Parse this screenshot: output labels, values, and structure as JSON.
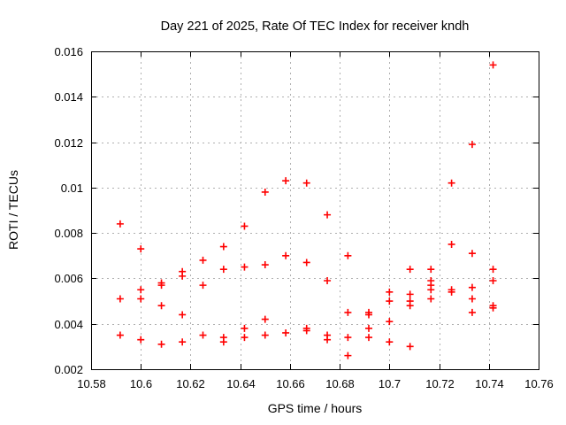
{
  "chart_data": {
    "type": "scatter",
    "title": "Day 221 of 2025, Rate Of TEC Index for receiver kndh",
    "xlabel": "GPS time / hours",
    "ylabel": "ROTI / TECUs",
    "xlim": [
      10.58,
      10.76
    ],
    "ylim": [
      0.002,
      0.016
    ],
    "x_ticks": [
      10.58,
      10.6,
      10.62,
      10.64,
      10.66,
      10.68,
      10.7,
      10.72,
      10.74,
      10.76
    ],
    "x_tick_labels": [
      "10.58",
      "10.6",
      "10.62",
      "10.64",
      "10.66",
      "10.68",
      "10.7",
      "10.72",
      "10.74",
      "10.76"
    ],
    "y_ticks": [
      0.002,
      0.004,
      0.006,
      0.008,
      0.01,
      0.012,
      0.014,
      0.016
    ],
    "y_tick_labels": [
      "0.002",
      "0.004",
      "0.006",
      "0.008",
      "0.01",
      "0.012",
      "0.014",
      "0.016"
    ],
    "grid": true,
    "legend": "none",
    "marker": "plus",
    "series": [
      {
        "name": "roti",
        "points": [
          [
            10.5917,
            0.0084
          ],
          [
            10.5917,
            0.0051
          ],
          [
            10.5917,
            0.0035
          ],
          [
            10.6,
            0.0073
          ],
          [
            10.6,
            0.0055
          ],
          [
            10.6,
            0.0051
          ],
          [
            10.6,
            0.0033
          ],
          [
            10.6083,
            0.0058
          ],
          [
            10.6083,
            0.0057
          ],
          [
            10.6083,
            0.0048
          ],
          [
            10.6083,
            0.0031
          ],
          [
            10.6167,
            0.0063
          ],
          [
            10.6167,
            0.0061
          ],
          [
            10.6167,
            0.0044
          ],
          [
            10.6167,
            0.0032
          ],
          [
            10.625,
            0.0068
          ],
          [
            10.625,
            0.0057
          ],
          [
            10.625,
            0.0035
          ],
          [
            10.6333,
            0.0074
          ],
          [
            10.6333,
            0.0064
          ],
          [
            10.6333,
            0.0034
          ],
          [
            10.6333,
            0.0032
          ],
          [
            10.6417,
            0.0083
          ],
          [
            10.6417,
            0.0065
          ],
          [
            10.6417,
            0.0038
          ],
          [
            10.6417,
            0.0034
          ],
          [
            10.65,
            0.0098
          ],
          [
            10.65,
            0.0066
          ],
          [
            10.65,
            0.0042
          ],
          [
            10.65,
            0.0035
          ],
          [
            10.6583,
            0.0103
          ],
          [
            10.6583,
            0.007
          ],
          [
            10.6583,
            0.0036
          ],
          [
            10.6667,
            0.0102
          ],
          [
            10.6667,
            0.0067
          ],
          [
            10.6667,
            0.0038
          ],
          [
            10.6667,
            0.0037
          ],
          [
            10.675,
            0.0088
          ],
          [
            10.675,
            0.0059
          ],
          [
            10.675,
            0.0035
          ],
          [
            10.675,
            0.0033
          ],
          [
            10.6833,
            0.007
          ],
          [
            10.6833,
            0.0045
          ],
          [
            10.6833,
            0.0034
          ],
          [
            10.6833,
            0.0026
          ],
          [
            10.6917,
            0.0045
          ],
          [
            10.6917,
            0.0044
          ],
          [
            10.6917,
            0.0038
          ],
          [
            10.6917,
            0.0034
          ],
          [
            10.7,
            0.0054
          ],
          [
            10.7,
            0.005
          ],
          [
            10.7,
            0.0041
          ],
          [
            10.7,
            0.0032
          ],
          [
            10.7083,
            0.0064
          ],
          [
            10.7083,
            0.0053
          ],
          [
            10.7083,
            0.005
          ],
          [
            10.7083,
            0.0048
          ],
          [
            10.7083,
            0.003
          ],
          [
            10.7167,
            0.0064
          ],
          [
            10.7167,
            0.0059
          ],
          [
            10.7167,
            0.0057
          ],
          [
            10.7167,
            0.0055
          ],
          [
            10.7167,
            0.0051
          ],
          [
            10.725,
            0.0102
          ],
          [
            10.725,
            0.0075
          ],
          [
            10.725,
            0.0055
          ],
          [
            10.725,
            0.0054
          ],
          [
            10.7333,
            0.0119
          ],
          [
            10.7333,
            0.0071
          ],
          [
            10.7333,
            0.0056
          ],
          [
            10.7333,
            0.0051
          ],
          [
            10.7333,
            0.0045
          ],
          [
            10.7417,
            0.0154
          ],
          [
            10.7417,
            0.0064
          ],
          [
            10.7417,
            0.0059
          ],
          [
            10.7417,
            0.0048
          ],
          [
            10.7417,
            0.0047
          ]
        ]
      }
    ],
    "colors": {
      "marker": "#ff0000",
      "grid": "#b0b0b0",
      "frame": "#000000",
      "text": "#000000",
      "background": "#ffffff"
    }
  }
}
